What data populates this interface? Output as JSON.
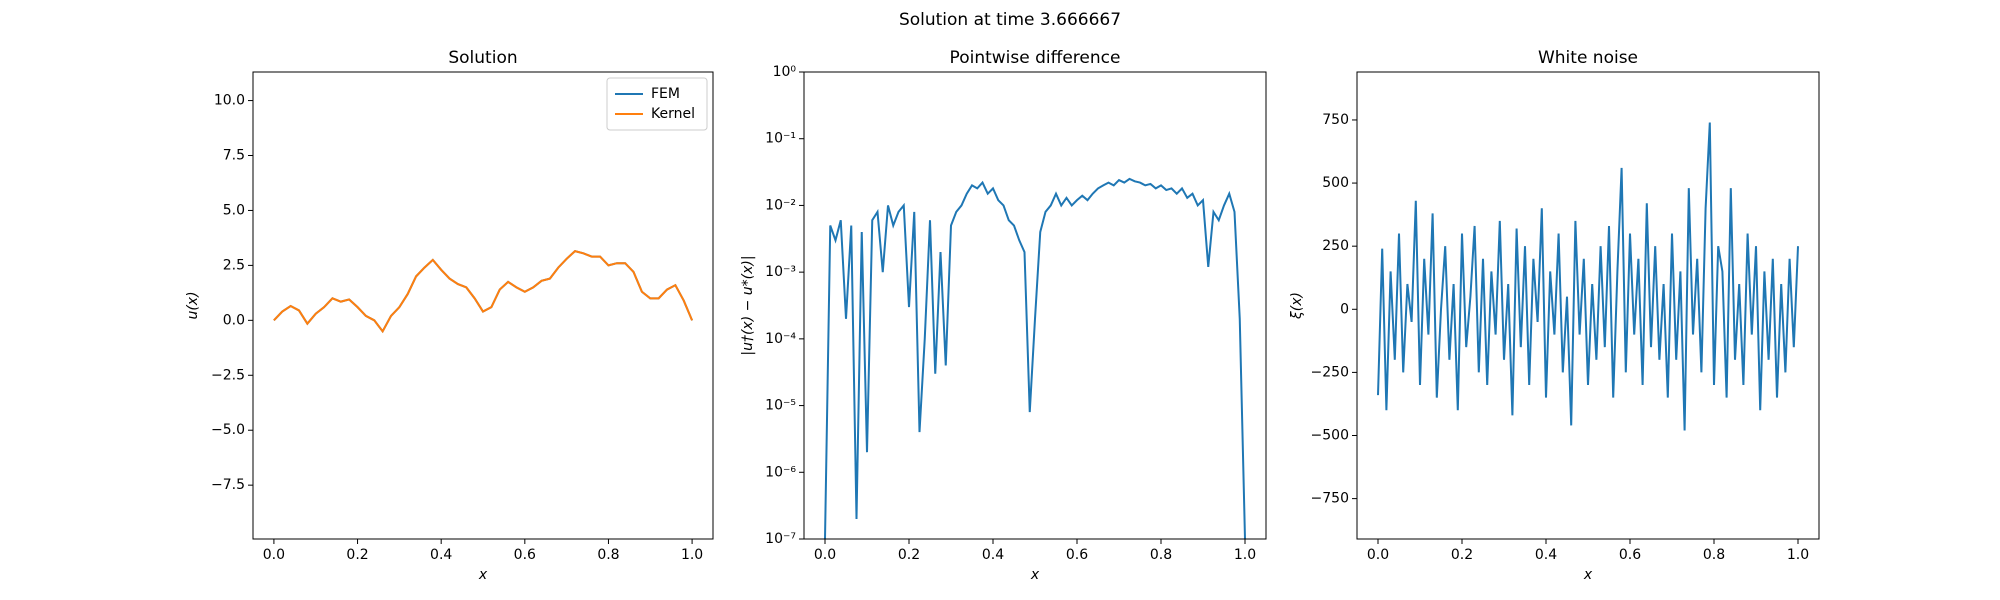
{
  "title": "Solution at time 3.666667",
  "chart_data": [
    {
      "type": "line",
      "title": "Solution",
      "xlabel": "x",
      "ylabel": "u(x)",
      "legend": "upper right",
      "x": [
        0,
        0.02,
        0.04,
        0.06,
        0.08,
        0.1,
        0.12,
        0.14,
        0.16,
        0.18,
        0.2,
        0.22,
        0.24,
        0.26,
        0.28,
        0.3,
        0.32,
        0.34,
        0.36,
        0.38,
        0.4,
        0.42,
        0.44,
        0.46,
        0.48,
        0.5,
        0.52,
        0.54,
        0.56,
        0.58,
        0.6,
        0.62,
        0.64,
        0.66,
        0.68,
        0.7,
        0.72,
        0.74,
        0.76,
        0.78,
        0.8,
        0.82,
        0.84,
        0.86,
        0.88,
        0.9,
        0.92,
        0.94,
        0.96,
        0.98,
        1
      ],
      "series": [
        {
          "name": "FEM",
          "color": "#1f77b4",
          "values": [
            0,
            0.4,
            0.65,
            0.45,
            -0.15,
            0.3,
            0.6,
            1.0,
            0.85,
            0.95,
            0.6,
            0.2,
            0.0,
            -0.5,
            0.2,
            0.6,
            1.2,
            2.0,
            2.4,
            2.75,
            2.3,
            1.9,
            1.65,
            1.5,
            1.0,
            0.4,
            0.6,
            1.4,
            1.75,
            1.5,
            1.3,
            1.5,
            1.8,
            1.9,
            2.4,
            2.8,
            3.15,
            3.05,
            2.9,
            2.9,
            2.5,
            2.6,
            2.6,
            2.2,
            1.3,
            1.0,
            1.0,
            1.4,
            1.6,
            0.9,
            0.0
          ]
        },
        {
          "name": "Kernel",
          "color": "#ff7f0e",
          "values": [
            0,
            0.4,
            0.65,
            0.45,
            -0.15,
            0.3,
            0.6,
            1.0,
            0.85,
            0.95,
            0.6,
            0.2,
            0.0,
            -0.5,
            0.2,
            0.6,
            1.2,
            2.0,
            2.4,
            2.75,
            2.3,
            1.9,
            1.65,
            1.5,
            1.0,
            0.4,
            0.6,
            1.4,
            1.75,
            1.5,
            1.3,
            1.5,
            1.8,
            1.9,
            2.4,
            2.8,
            3.15,
            3.05,
            2.9,
            2.9,
            2.5,
            2.6,
            2.6,
            2.2,
            1.3,
            1.0,
            1.0,
            1.4,
            1.6,
            0.9,
            0.0
          ]
        }
      ],
      "xlim": [
        -0.05,
        1.05
      ],
      "xticks": [
        {
          "value": 0,
          "label": "0.0"
        },
        0.2,
        0.4,
        0.6,
        0.8,
        {
          "value": 1,
          "label": "1.0"
        }
      ],
      "ylim": [
        -9.95,
        11.3
      ],
      "yticks": [
        {
          "value": -7.5,
          "label": "−7.5"
        },
        {
          "value": -5,
          "label": "−5.0"
        },
        {
          "value": -2.5,
          "label": "−2.5"
        },
        {
          "value": 0,
          "label": "0.0"
        },
        2.5,
        {
          "value": 5,
          "label": "5.0"
        },
        7.5,
        {
          "value": 10,
          "label": "10.0"
        }
      ]
    },
    {
      "type": "line",
      "title": "Pointwise difference",
      "xlabel": "x",
      "ylabel": "|u†(x) − u*(x)|",
      "yscale": "log",
      "x": [
        0,
        0.0125,
        0.025,
        0.0375,
        0.05,
        0.0625,
        0.075,
        0.0875,
        0.1,
        0.1125,
        0.125,
        0.1375,
        0.15,
        0.1625,
        0.175,
        0.1875,
        0.2,
        0.2125,
        0.225,
        0.2375,
        0.25,
        0.2625,
        0.275,
        0.2875,
        0.3,
        0.3125,
        0.325,
        0.3375,
        0.35,
        0.3625,
        0.375,
        0.3875,
        0.4,
        0.4125,
        0.425,
        0.4375,
        0.45,
        0.4625,
        0.475,
        0.4875,
        0.5,
        0.5125,
        0.525,
        0.5375,
        0.55,
        0.5625,
        0.575,
        0.5875,
        0.6,
        0.6125,
        0.625,
        0.6375,
        0.65,
        0.6625,
        0.675,
        0.6875,
        0.7,
        0.7125,
        0.725,
        0.7375,
        0.75,
        0.7625,
        0.775,
        0.7875,
        0.8,
        0.8125,
        0.825,
        0.8375,
        0.85,
        0.8625,
        0.875,
        0.8875,
        0.9,
        0.9125,
        0.925,
        0.9375,
        0.95,
        0.9625,
        0.975,
        0.9875,
        1
      ],
      "series": [
        {
          "color": "#1f77b4",
          "values": [
            1e-07,
            0.005,
            0.003,
            0.006,
            0.0002,
            0.005,
            2e-07,
            0.004,
            2e-06,
            0.006,
            0.008,
            0.001,
            0.01,
            0.005,
            0.008,
            0.01,
            0.0003,
            0.008,
            4e-06,
            0.0001,
            0.006,
            3e-05,
            0.002,
            4e-05,
            0.005,
            0.008,
            0.01,
            0.015,
            0.02,
            0.018,
            0.022,
            0.015,
            0.018,
            0.012,
            0.01,
            0.006,
            0.005,
            0.003,
            0.002,
            8e-06,
            0.0002,
            0.004,
            0.008,
            0.01,
            0.015,
            0.01,
            0.013,
            0.01,
            0.012,
            0.014,
            0.012,
            0.015,
            0.018,
            0.02,
            0.022,
            0.02,
            0.024,
            0.022,
            0.025,
            0.023,
            0.022,
            0.02,
            0.021,
            0.018,
            0.02,
            0.017,
            0.018,
            0.015,
            0.018,
            0.013,
            0.015,
            0.01,
            0.012,
            0.0012,
            0.008,
            0.006,
            0.01,
            0.015,
            0.008,
            0.0002,
            1e-07
          ]
        }
      ],
      "xlim": [
        -0.05,
        1.05
      ],
      "xticks": [
        {
          "value": 0,
          "label": "0.0"
        },
        0.2,
        0.4,
        0.6,
        0.8,
        {
          "value": 1,
          "label": "1.0"
        }
      ],
      "ylim": [
        1e-07,
        1
      ],
      "yticks": [
        {
          "value": 1e-07,
          "label": "10⁻⁷"
        },
        {
          "value": 1e-06,
          "label": "10⁻⁶"
        },
        {
          "value": 1e-05,
          "label": "10⁻⁵"
        },
        {
          "value": 0.0001,
          "label": "10⁻⁴"
        },
        {
          "value": 0.001,
          "label": "10⁻³"
        },
        {
          "value": 0.01,
          "label": "10⁻²"
        },
        {
          "value": 0.1,
          "label": "10⁻¹"
        },
        {
          "value": 1,
          "label": "10⁰"
        }
      ]
    },
    {
      "type": "line",
      "title": "White noise",
      "xlabel": "x",
      "ylabel": "ξ(x)",
      "x": [
        0,
        0.01,
        0.02,
        0.03,
        0.04,
        0.05,
        0.06,
        0.07,
        0.08,
        0.09,
        0.1,
        0.11,
        0.12,
        0.13,
        0.14,
        0.15,
        0.16,
        0.17,
        0.18,
        0.19,
        0.2,
        0.21,
        0.22,
        0.23,
        0.24,
        0.25,
        0.26,
        0.27,
        0.28,
        0.29,
        0.3,
        0.31,
        0.32,
        0.33,
        0.34,
        0.35,
        0.36,
        0.37,
        0.38,
        0.39,
        0.4,
        0.41,
        0.42,
        0.43,
        0.44,
        0.45,
        0.46,
        0.47,
        0.48,
        0.49,
        0.5,
        0.51,
        0.52,
        0.53,
        0.54,
        0.55,
        0.56,
        0.57,
        0.58,
        0.59,
        0.6,
        0.61,
        0.62,
        0.63,
        0.64,
        0.65,
        0.66,
        0.67,
        0.68,
        0.69,
        0.7,
        0.71,
        0.72,
        0.73,
        0.74,
        0.75,
        0.76,
        0.77,
        0.78,
        0.79,
        0.8,
        0.81,
        0.82,
        0.83,
        0.84,
        0.85,
        0.86,
        0.87,
        0.88,
        0.89,
        0.9,
        0.91,
        0.92,
        0.93,
        0.94,
        0.95,
        0.96,
        0.97,
        0.98,
        0.99,
        1
      ],
      "series": [
        {
          "color": "#1f77b4",
          "values": [
            -340,
            240,
            -400,
            150,
            -200,
            300,
            -250,
            100,
            -50,
            430,
            -300,
            200,
            -100,
            380,
            -350,
            0,
            250,
            -200,
            100,
            -400,
            300,
            -150,
            50,
            330,
            -250,
            200,
            -300,
            150,
            -100,
            350,
            -200,
            100,
            -420,
            320,
            -150,
            250,
            -300,
            200,
            -50,
            400,
            -350,
            150,
            -100,
            300,
            -250,
            50,
            -460,
            350,
            -100,
            200,
            -300,
            100,
            -200,
            250,
            -150,
            330,
            -350,
            150,
            560,
            -250,
            300,
            -100,
            200,
            -300,
            420,
            -150,
            250,
            -200,
            100,
            -350,
            300,
            -200,
            150,
            -480,
            480,
            -100,
            200,
            -250,
            400,
            740,
            -300,
            250,
            150,
            -350,
            480,
            -200,
            100,
            -300,
            300,
            -100,
            250,
            -400,
            150,
            -200,
            200,
            -350,
            100,
            -250,
            200,
            -150,
            250
          ]
        }
      ],
      "xlim": [
        -0.05,
        1.05
      ],
      "xticks": [
        {
          "value": 0,
          "label": "0.0"
        },
        0.2,
        0.4,
        0.6,
        0.8,
        {
          "value": 1,
          "label": "1.0"
        }
      ],
      "ylim": [
        -910,
        940
      ],
      "yticks": [
        {
          "value": -750,
          "label": "−750"
        },
        {
          "value": -500,
          "label": "−500"
        },
        {
          "value": -250,
          "label": "−250"
        },
        0,
        250,
        500,
        750
      ]
    }
  ]
}
